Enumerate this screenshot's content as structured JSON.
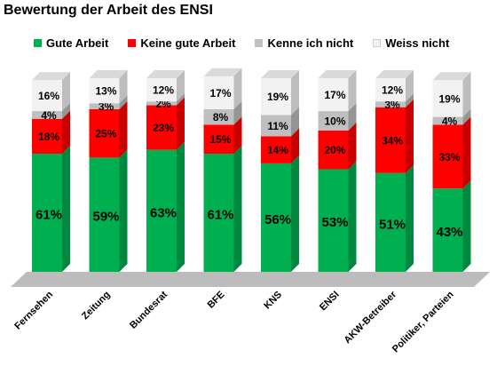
{
  "chart_data": {
    "type": "bar",
    "stacked": true,
    "title": "Bewertung der Arbeit des ENSI",
    "categories": [
      "Fernsehen",
      "Zeitung",
      "Bundesrat",
      "BFE",
      "KNS",
      "ENSI",
      "AKW-Betreiber",
      "Politiker, Parteien"
    ],
    "series": [
      {
        "name": "Gute Arbeit",
        "color": "#00b050",
        "values": [
          61,
          59,
          63,
          61,
          56,
          53,
          51,
          43
        ]
      },
      {
        "name": "Keine gute Arbeit",
        "color": "#ff0000",
        "values": [
          18,
          25,
          23,
          15,
          14,
          20,
          34,
          33
        ]
      },
      {
        "name": "Kenne ich nicht",
        "color": "#bfbfbf",
        "values": [
          4,
          3,
          2,
          8,
          11,
          10,
          3,
          4
        ]
      },
      {
        "name": "Weiss nicht",
        "color": "#f2f2f2",
        "values": [
          16,
          13,
          12,
          17,
          19,
          17,
          12,
          19
        ]
      }
    ],
    "value_suffix": "%",
    "legend_position": "top",
    "grid": false
  }
}
